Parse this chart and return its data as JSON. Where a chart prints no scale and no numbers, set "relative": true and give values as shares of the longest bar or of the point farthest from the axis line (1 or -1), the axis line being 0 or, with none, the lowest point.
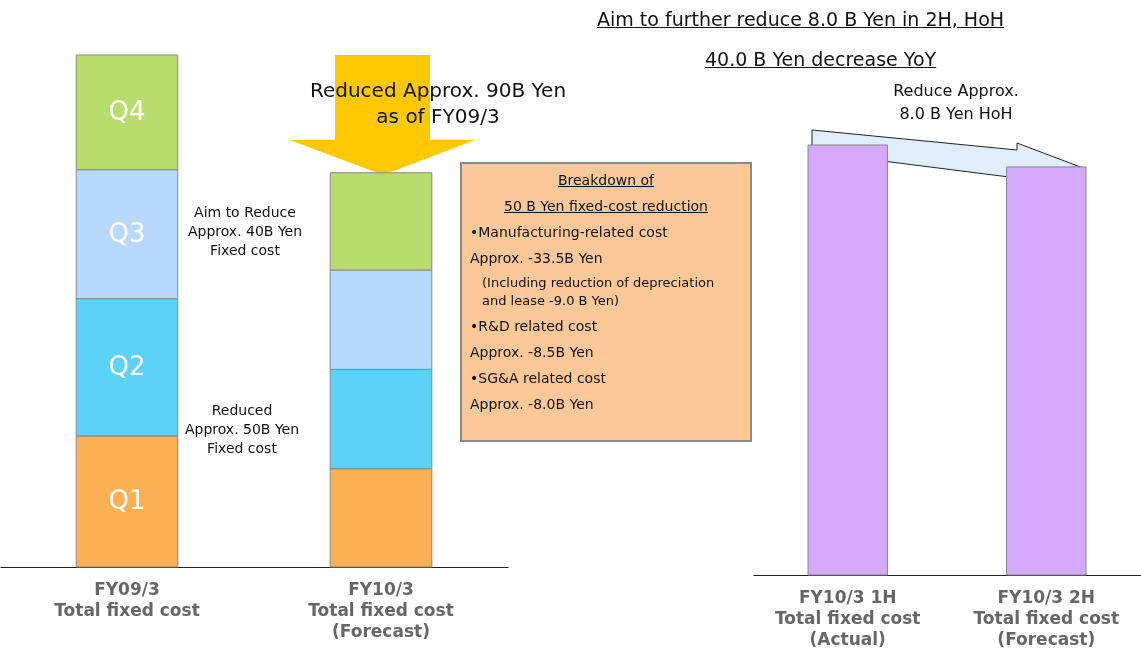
{
  "chart_data": [
    {
      "type": "bar",
      "stacked": true,
      "relative": true,
      "categories": [
        "FY09/3\nTotal fixed cost",
        "FY10/3\nTotal fixed cost\n(Forecast)"
      ],
      "series": [
        {
          "name": "Q1",
          "color": "#fbb054",
          "values": [
            0.256,
            0.192
          ]
        },
        {
          "name": "Q2",
          "color": "#5cd2f8",
          "values": [
            0.268,
            0.194
          ]
        },
        {
          "name": "Q3",
          "color": "#b8d8fc",
          "values": [
            0.252,
            0.194
          ]
        },
        {
          "name": "Q4",
          "color": "#b9dc6e",
          "values": [
            0.224,
            0.19
          ]
        }
      ],
      "annotations": [
        "Reduced Approx. 90B Yen\nas of FY09/3",
        "Aim to Reduce\nApprox. 40B Yen\nFixed cost",
        "Reduced\nApprox. 50B Yen\nFixed cost",
        "Breakdown of",
        "50 B Yen fixed-cost reduction",
        "•Manufacturing-related cost",
        "Approx. -33.5B Yen",
        "(Including reduction of depreciation\nand lease -9.0 B Yen)",
        "•R&D related cost",
        "Approx. -8.5B Yen",
        "•SG&A related cost",
        "Approx. -8.0B Yen"
      ]
    },
    {
      "type": "bar",
      "relative": true,
      "title": "Aim to further reduce 8.0 B Yen in 2H, HoH",
      "subtitle": "40.0 B Yen decrease YoY",
      "categories": [
        "FY10/3 1H\nTotal fixed cost\n(Actual)",
        "FY10/3 2H\nTotal fixed cost\n(Forecast)"
      ],
      "values": [
        1,
        0.949
      ],
      "color": "#d4a8fb",
      "annotations": [
        "Reduce Approx.\n8.0 B Yen HoH"
      ]
    }
  ]
}
